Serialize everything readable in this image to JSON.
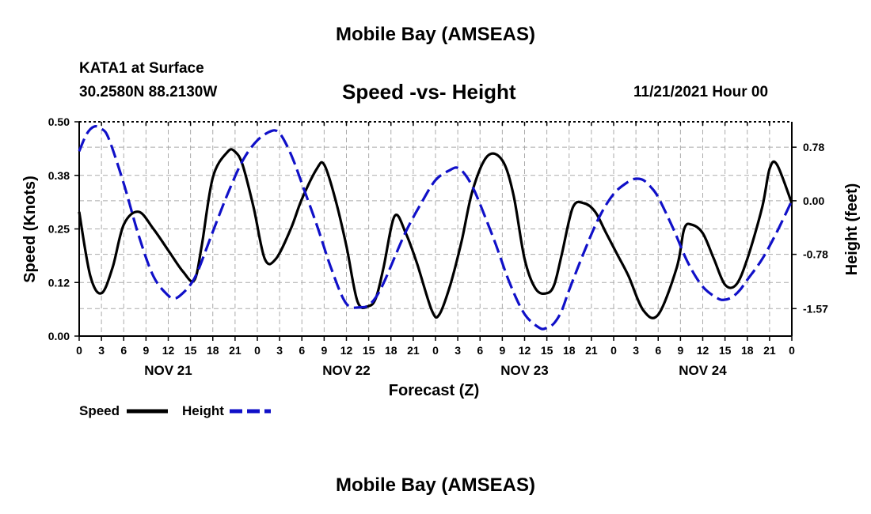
{
  "title": "Mobile Bay (AMSEAS)",
  "bottom_title": "Mobile Bay (AMSEAS)",
  "station": "KATA1 at Surface",
  "coords": "30.2580N  88.2130W",
  "subtitle": "Speed -vs- Height",
  "datetime": "11/21/2021 Hour 00",
  "colors": {
    "speed": "#000000",
    "height": "#1010c8",
    "grid": "#aaaaaa"
  },
  "chart_data": {
    "type": "line",
    "title": "Speed -vs- Height",
    "xlabel": "Forecast (Z)",
    "ylabel": "Speed (Knots)",
    "y2label": "Height (feet)",
    "xlim": [
      0,
      96
    ],
    "ylim": [
      0,
      0.5
    ],
    "y2lim": [
      -1.97,
      1.15
    ],
    "x_ticks": [
      0,
      3,
      6,
      9,
      12,
      15,
      18,
      21,
      24,
      27,
      30,
      33,
      36,
      39,
      42,
      45,
      48,
      51,
      54,
      57,
      60,
      63,
      66,
      69,
      72,
      75,
      78,
      81,
      84,
      87,
      90,
      93,
      96
    ],
    "x_tick_labels": [
      "0",
      "3",
      "6",
      "9",
      "12",
      "15",
      "18",
      "21",
      "0",
      "3",
      "6",
      "9",
      "12",
      "15",
      "18",
      "21",
      "0",
      "3",
      "6",
      "9",
      "12",
      "15",
      "18",
      "21",
      "0",
      "3",
      "6",
      "9",
      "12",
      "15",
      "18",
      "21",
      "0"
    ],
    "day_labels": [
      {
        "x": 12,
        "label": "NOV 21"
      },
      {
        "x": 36,
        "label": "NOV 22"
      },
      {
        "x": 60,
        "label": "NOV 23"
      },
      {
        "x": 84,
        "label": "NOV 24"
      }
    ],
    "y_ticks": [
      0,
      0.125,
      0.25,
      0.375,
      0.5
    ],
    "y_tick_labels": [
      "0.00",
      "0.12",
      "0.25",
      "0.38",
      "0.50"
    ],
    "y2_ticks": [
      0.78,
      0,
      -0.78,
      -1.57
    ],
    "y2_tick_labels": [
      "0.78",
      "0.00",
      "-0.78",
      "-1.57"
    ],
    "legend": [
      {
        "name": "Speed",
        "style": "solid"
      },
      {
        "name": "Height",
        "style": "dashed"
      }
    ],
    "series": [
      {
        "name": "Speed",
        "axis": "left",
        "x": [
          0,
          1.5,
          3,
          4.5,
          6,
          8,
          10,
          12,
          14,
          15.5,
          16.5,
          18,
          20,
          21,
          22,
          23.5,
          25,
          26.5,
          28.5,
          30,
          32,
          33,
          34.5,
          36,
          37.5,
          39,
          40,
          41,
          42.5,
          44,
          45.5,
          47.5,
          48.5,
          50,
          51.5,
          53,
          55,
          57,
          58.5,
          60,
          61.5,
          63,
          64,
          65,
          66.5,
          68,
          69.5,
          71,
          72.5,
          74,
          76,
          78,
          80.5,
          81.5,
          82.5,
          84,
          85.5,
          87,
          88.5,
          90,
          92,
          93,
          94,
          96
        ],
        "values": [
          0.29,
          0.14,
          0.1,
          0.16,
          0.26,
          0.29,
          0.25,
          0.2,
          0.15,
          0.13,
          0.21,
          0.37,
          0.43,
          0.43,
          0.4,
          0.3,
          0.18,
          0.18,
          0.25,
          0.32,
          0.39,
          0.4,
          0.32,
          0.21,
          0.08,
          0.07,
          0.09,
          0.16,
          0.28,
          0.24,
          0.17,
          0.06,
          0.05,
          0.12,
          0.22,
          0.34,
          0.42,
          0.41,
          0.33,
          0.18,
          0.11,
          0.1,
          0.12,
          0.19,
          0.3,
          0.31,
          0.29,
          0.24,
          0.19,
          0.14,
          0.06,
          0.05,
          0.16,
          0.25,
          0.26,
          0.24,
          0.18,
          0.12,
          0.12,
          0.18,
          0.3,
          0.39,
          0.4,
          0.31
        ]
      },
      {
        "name": "Height",
        "axis": "right",
        "x": [
          0,
          1,
          2,
          3,
          4,
          6,
          8,
          10,
          12,
          13,
          14,
          15,
          16,
          18,
          20,
          22,
          24,
          26,
          27,
          28,
          29,
          30,
          32,
          34,
          36,
          38,
          39,
          40,
          41,
          42,
          44,
          46,
          48,
          50,
          51,
          52,
          53,
          54,
          56,
          58,
          60,
          62,
          63,
          64,
          65,
          66,
          68,
          70,
          72,
          74,
          75,
          76,
          77,
          78,
          80,
          82,
          84,
          86,
          87,
          88,
          89,
          90,
          92,
          94,
          96
        ],
        "values": [
          0.72,
          0.97,
          1.08,
          1.05,
          0.9,
          0.25,
          -0.5,
          -1.1,
          -1.38,
          -1.42,
          -1.34,
          -1.22,
          -1.02,
          -0.45,
          0.1,
          0.58,
          0.88,
          1.02,
          0.98,
          0.8,
          0.55,
          0.25,
          -0.35,
          -1.0,
          -1.5,
          -1.55,
          -1.52,
          -1.4,
          -1.2,
          -0.95,
          -0.45,
          -0.05,
          0.3,
          0.45,
          0.48,
          0.38,
          0.2,
          -0.05,
          -0.6,
          -1.2,
          -1.65,
          -1.85,
          -1.85,
          -1.78,
          -1.6,
          -1.3,
          -0.75,
          -0.25,
          0.1,
          0.28,
          0.32,
          0.3,
          0.2,
          0.05,
          -0.4,
          -0.9,
          -1.25,
          -1.42,
          -1.44,
          -1.4,
          -1.3,
          -1.15,
          -0.85,
          -0.45,
          0.0
        ]
      }
    ]
  }
}
